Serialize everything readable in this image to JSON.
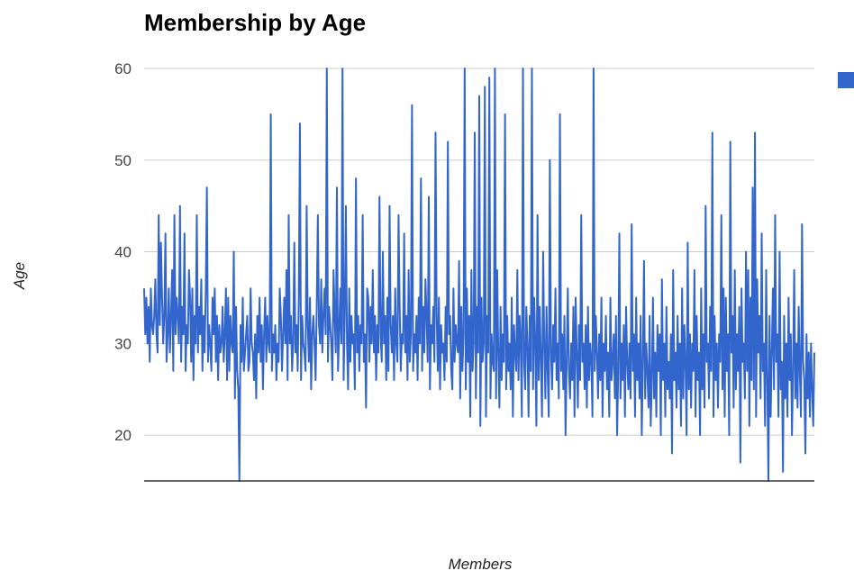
{
  "chart_data": {
    "type": "line",
    "title": "Membership by Age",
    "xlabel": "Members",
    "ylabel": "Age",
    "ylim": [
      15,
      60
    ],
    "yticks": [
      20,
      30,
      40,
      50,
      60
    ],
    "grid": true,
    "legend": "right",
    "series": [
      {
        "color": "#3366cc",
        "values": [
          36,
          31,
          35,
          30,
          34,
          28,
          36,
          32,
          31,
          33,
          37,
          31,
          29,
          44,
          32,
          41,
          35,
          30,
          33,
          42,
          28,
          31,
          36,
          29,
          33,
          38,
          27,
          44,
          31,
          35,
          33,
          30,
          45,
          28,
          34,
          31,
          42,
          27,
          32,
          30,
          38,
          35,
          28,
          36,
          26,
          33,
          30,
          44,
          29,
          34,
          31,
          37,
          27,
          33,
          29,
          36,
          47,
          28,
          32,
          30,
          27,
          35,
          31,
          36,
          28,
          33,
          26,
          32,
          29,
          30,
          34,
          28,
          31,
          36,
          26,
          35,
          27,
          33,
          30,
          29,
          40,
          24,
          34,
          27,
          25,
          15,
          32,
          28,
          35,
          27,
          29,
          31,
          33,
          27,
          28,
          36,
          30,
          29,
          26,
          31,
          24,
          33,
          29,
          35,
          28,
          32,
          25,
          31,
          35,
          28,
          33,
          30,
          29,
          55,
          27,
          31,
          29,
          32,
          26,
          30,
          28,
          36,
          33,
          27,
          31,
          35,
          30,
          38,
          26,
          44,
          30,
          33,
          27,
          30,
          41,
          29,
          32,
          27,
          35,
          54,
          26,
          33,
          30,
          29,
          27,
          45,
          32,
          28,
          35,
          25,
          31,
          33,
          30,
          26,
          34,
          44,
          32,
          30,
          37,
          29,
          33,
          36,
          31,
          60,
          28,
          34,
          32,
          30,
          26,
          38,
          33,
          29,
          47,
          27,
          31,
          36,
          30,
          60,
          26,
          33,
          45,
          30,
          25,
          36,
          28,
          33,
          30,
          31,
          25,
          48,
          29,
          33,
          27,
          32,
          30,
          44,
          28,
          31,
          23,
          36,
          35,
          28,
          34,
          30,
          38,
          29,
          33,
          26,
          32,
          29,
          46,
          31,
          28,
          40,
          30,
          33,
          26,
          35,
          27,
          45,
          32,
          29,
          33,
          26,
          36,
          30,
          28,
          44,
          34,
          27,
          31,
          30,
          42,
          29,
          33,
          26,
          38,
          28,
          31,
          56,
          27,
          31,
          29,
          33,
          26,
          35,
          30,
          48,
          27,
          34,
          29,
          37,
          33,
          28,
          46,
          25,
          32,
          30,
          34,
          28,
          53,
          33,
          27,
          35,
          25,
          32,
          29,
          30,
          26,
          34,
          28,
          52,
          31,
          33,
          27,
          25,
          36,
          28,
          32,
          30,
          29,
          39,
          24,
          34,
          27,
          31,
          60,
          25,
          36,
          28,
          33,
          22,
          38,
          27,
          30,
          53,
          24,
          34,
          29,
          57,
          21,
          35,
          28,
          30,
          58,
          22,
          33,
          29,
          59,
          24,
          31,
          28,
          27,
          60,
          24,
          38,
          29,
          23,
          34,
          26,
          31,
          28,
          55,
          25,
          33,
          27,
          30,
          25,
          35,
          22,
          32,
          29,
          27,
          38,
          26,
          33,
          30,
          22,
          60,
          28,
          25,
          34,
          30,
          22,
          33,
          27,
          60,
          25,
          35,
          30,
          21,
          44,
          26,
          34,
          28,
          22,
          40,
          30,
          24,
          34,
          27,
          22,
          50,
          29,
          25,
          32,
          28,
          36,
          26,
          30,
          24,
          55,
          27,
          31,
          25,
          33,
          20,
          28,
          36,
          27,
          24,
          30,
          26,
          34,
          22,
          35,
          29,
          23,
          32,
          26,
          44,
          28,
          30,
          25,
          32,
          23,
          34,
          26,
          30,
          28,
          22,
          60,
          27,
          33,
          29,
          24,
          31,
          26,
          35,
          22,
          30,
          27,
          33,
          25,
          29,
          22,
          35,
          26,
          28,
          31,
          24,
          33,
          20,
          27,
          42,
          24,
          30,
          26,
          32,
          22,
          34,
          28,
          25,
          30,
          24,
          43,
          27,
          31,
          22,
          35,
          26,
          30,
          24,
          33,
          20,
          28,
          39,
          24,
          30,
          27,
          23,
          33,
          21,
          26,
          35,
          24,
          29,
          22,
          32,
          27,
          31,
          20,
          37,
          26,
          30,
          22,
          34,
          25,
          28,
          24,
          31,
          18,
          38,
          26,
          29,
          23,
          33,
          25,
          30,
          21,
          36,
          24,
          32,
          28,
          20,
          41,
          25,
          31,
          23,
          30,
          27,
          38,
          22,
          33,
          26,
          29,
          20,
          36,
          25,
          31,
          23,
          45,
          28,
          30,
          24,
          34,
          27,
          53,
          22,
          33,
          26,
          30,
          23,
          31,
          28,
          44,
          25,
          36,
          22,
          35,
          27,
          31,
          20,
          52,
          29,
          33,
          23,
          38,
          25,
          31,
          27,
          34,
          17,
          36,
          28,
          30,
          24,
          40,
          27,
          38,
          21,
          35,
          26,
          47,
          25,
          53,
          22,
          37,
          29,
          33,
          24,
          42,
          27,
          30,
          21,
          38,
          26,
          15,
          33,
          22,
          29,
          36,
          25,
          44,
          28,
          31,
          22,
          40,
          25,
          28,
          16,
          33,
          24,
          30,
          22,
          35,
          26,
          31,
          20,
          27,
          38,
          24,
          30,
          23,
          34,
          27,
          22,
          43,
          28,
          26,
          18,
          31,
          24,
          29,
          22,
          30,
          25,
          21,
          29
        ]
      }
    ]
  }
}
